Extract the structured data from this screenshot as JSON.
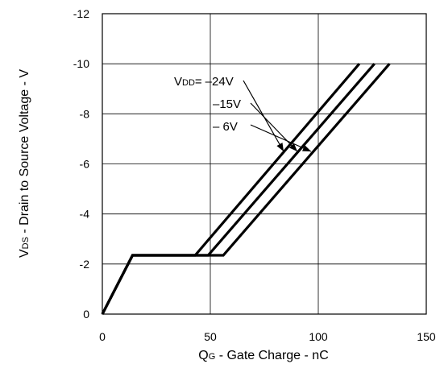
{
  "chart_data": {
    "type": "line",
    "xlabel": {
      "main": "Q",
      "sub": "G",
      "rest": " - Gate Charge - nC"
    },
    "ylabel": {
      "main": "V",
      "sub": "DS",
      "rest": " - Drain to Source Voltage - V"
    },
    "xlim": [
      0,
      150
    ],
    "ylim": [
      0,
      -12
    ],
    "x_ticks": [
      0,
      50,
      100,
      150
    ],
    "x_tick_labels": [
      "0",
      "50",
      "100",
      "150"
    ],
    "y_ticks": [
      0,
      -2,
      -4,
      -6,
      -8,
      -10,
      -12
    ],
    "y_tick_labels": [
      "0",
      "-2",
      "-4",
      "-6",
      "-8",
      "-10",
      "-12"
    ],
    "grid": true,
    "series": [
      {
        "name": "–24V",
        "x": [
          0,
          14,
          43,
          119
        ],
        "y": [
          0,
          -2.35,
          -2.35,
          -10
        ]
      },
      {
        "name": "–15V",
        "x": [
          0,
          14,
          49,
          126
        ],
        "y": [
          0,
          -2.35,
          -2.35,
          -10
        ]
      },
      {
        "name": "– 6V",
        "x": [
          0,
          14,
          56,
          133
        ],
        "y": [
          0,
          -2.35,
          -2.35,
          -10
        ]
      }
    ],
    "annotation": {
      "prefix_main": "V",
      "prefix_sub": "DD",
      "prefix_rest": "=",
      "labels": [
        "–24V",
        "–15V",
        "– 6V"
      ]
    }
  }
}
